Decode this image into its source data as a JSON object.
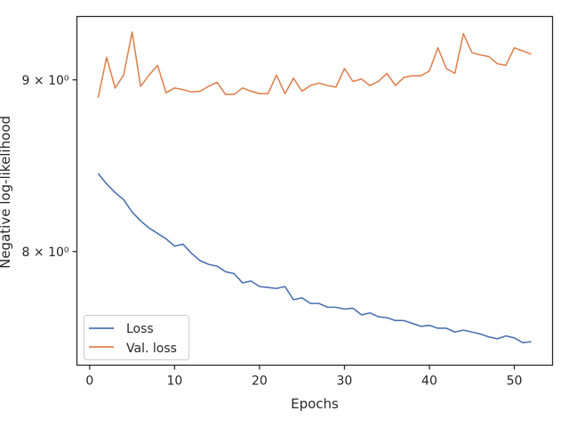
{
  "chart_data": {
    "type": "line",
    "xlabel": "Epochs",
    "ylabel": "Negative log-likelihood",
    "xlim": [
      -1.5,
      54.5
    ],
    "ylim": [
      7.4,
      9.4
    ],
    "yscale": "log",
    "xticks": [
      0,
      10,
      20,
      30,
      40,
      50
    ],
    "yticks": [
      {
        "value": 8,
        "label": "8 × 10⁰"
      },
      {
        "value": 9,
        "label": "9 × 10⁰"
      }
    ],
    "grid": false,
    "legend_position": "lower-left",
    "x": [
      1,
      2,
      3,
      4,
      5,
      6,
      7,
      8,
      9,
      10,
      11,
      12,
      13,
      14,
      15,
      16,
      17,
      18,
      19,
      20,
      21,
      22,
      23,
      24,
      25,
      26,
      27,
      28,
      29,
      30,
      31,
      32,
      33,
      34,
      35,
      36,
      37,
      38,
      39,
      40,
      41,
      42,
      43,
      44,
      45,
      46,
      47,
      48,
      49,
      50,
      51,
      52
    ],
    "series": [
      {
        "name": "Loss",
        "color": "#4c72b0",
        "values": [
          8.44,
          8.38,
          8.33,
          8.29,
          8.22,
          8.17,
          8.13,
          8.1,
          8.07,
          8.03,
          8.04,
          7.99,
          7.95,
          7.93,
          7.92,
          7.89,
          7.88,
          7.83,
          7.84,
          7.81,
          7.805,
          7.8,
          7.81,
          7.74,
          7.75,
          7.72,
          7.72,
          7.7,
          7.7,
          7.69,
          7.695,
          7.66,
          7.67,
          7.65,
          7.645,
          7.63,
          7.63,
          7.615,
          7.6,
          7.605,
          7.59,
          7.59,
          7.57,
          7.58,
          7.57,
          7.56,
          7.545,
          7.535,
          7.55,
          7.54,
          7.515,
          7.52
        ]
      },
      {
        "name": "Val. loss",
        "color": "#dd8452",
        "values": [
          8.89,
          9.14,
          8.95,
          9.03,
          9.3,
          8.96,
          9.03,
          9.09,
          8.92,
          8.95,
          8.94,
          8.925,
          8.93,
          8.96,
          8.985,
          8.91,
          8.91,
          8.95,
          8.93,
          8.915,
          8.915,
          9.03,
          8.915,
          9.01,
          8.93,
          8.965,
          8.98,
          8.965,
          8.955,
          9.07,
          8.99,
          9.005,
          8.965,
          8.99,
          9.04,
          8.965,
          9.015,
          9.025,
          9.025,
          9.055,
          9.2,
          9.07,
          9.04,
          9.29,
          9.17,
          9.155,
          9.145,
          9.1,
          9.09,
          9.2,
          9.18,
          9.16
        ]
      }
    ]
  }
}
